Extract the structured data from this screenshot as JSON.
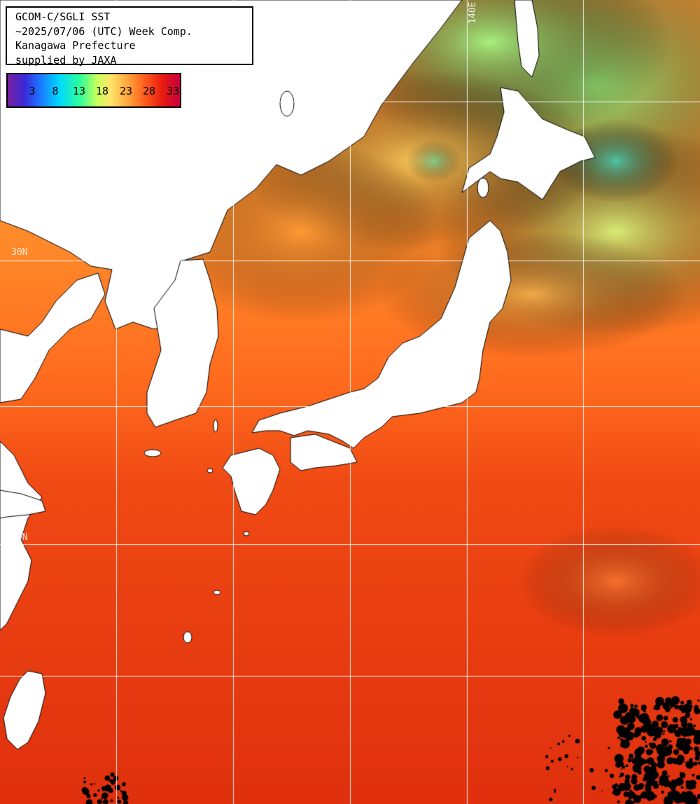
{
  "header": {
    "line1": "GCOM-C/SGLI SST",
    "line2": "~2025/07/06 (UTC) Week Comp.",
    "line3": "Kanagawa Prefecture",
    "line4": "supplied by JAXA"
  },
  "colorbar": {
    "ticks": [
      "3",
      "8",
      "13",
      "18",
      "23",
      "28",
      "33"
    ]
  },
  "grid_labels": {
    "lon_140e": "140E",
    "lat_30n": "30N",
    "lat_20n": "20N"
  },
  "colors": {
    "land": "#ffffff",
    "coast": "#000000",
    "cloud": "#000000",
    "grid": "#ffffff",
    "sst_warm": "#e2360f",
    "sst_mid": "#ff8a28",
    "sst_cool": "#bff27a"
  }
}
